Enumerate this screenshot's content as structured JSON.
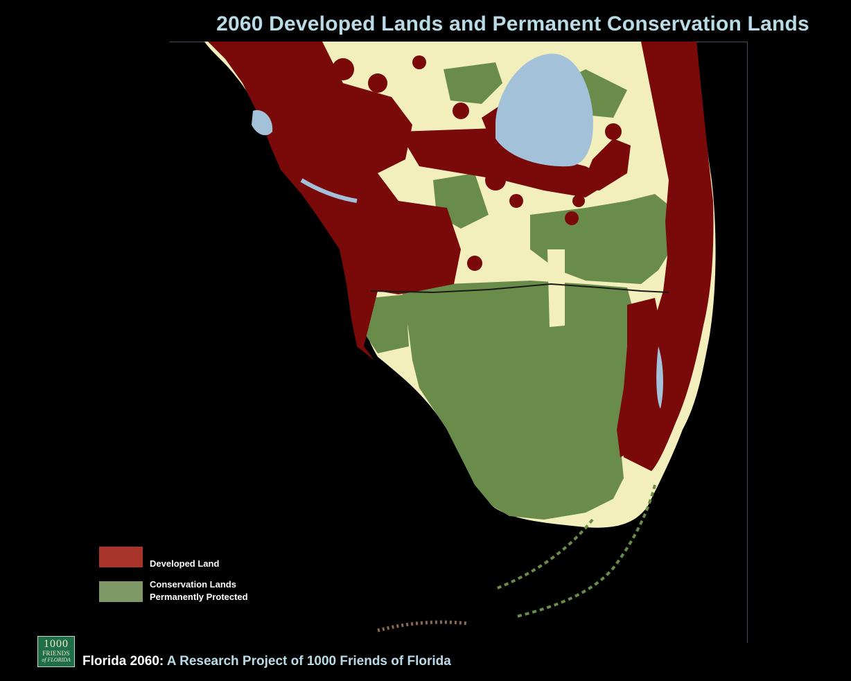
{
  "title": {
    "text": "2060 Developed Lands and Permanent Conservation Lands",
    "color": "#b9dbe6"
  },
  "colors": {
    "developed": "#7a0a0a",
    "conservation": "#6a8c4a",
    "agricultural_undeveloped": "#f3efbd",
    "water": "#a3c1d9",
    "background": "#000000"
  },
  "legend": [
    {
      "key": "developed",
      "label_lines": [
        "Developed Land"
      ],
      "swatch_color": "#a8342a"
    },
    {
      "key": "conservation",
      "label_lines": [
        "Conservation Lands",
        "Permanently Protected"
      ],
      "swatch_color": "#7f9868"
    }
  ],
  "logo": {
    "line1": "1000",
    "line2": "FRIENDS",
    "line3": "of FLORIDA",
    "icon": "1000-friends-of-florida-logo"
  },
  "footer": {
    "prefix": "Florida 2060: ",
    "rest": "A Research Project of 1000 Friends of Florida",
    "prefix_color": "#ffffff",
    "rest_color": "#b9dbe6"
  }
}
